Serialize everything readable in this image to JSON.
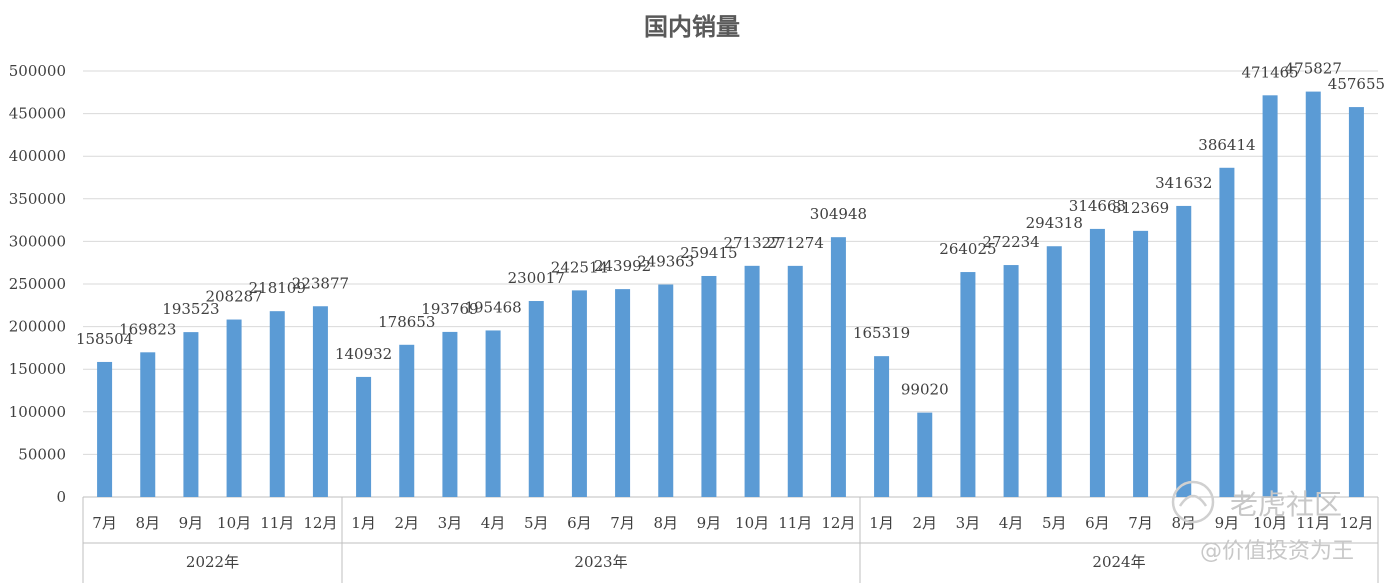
{
  "chart_data": {
    "type": "bar",
    "title": "国内销量",
    "ylim": [
      0,
      500000
    ],
    "yticks": [
      0,
      50000,
      100000,
      150000,
      200000,
      250000,
      300000,
      350000,
      400000,
      450000,
      500000
    ],
    "grid": true,
    "bar_color": "#5b9bd5",
    "categories": [
      "7月",
      "8月",
      "9月",
      "10月",
      "11月",
      "12月",
      "1月",
      "2月",
      "3月",
      "4月",
      "5月",
      "6月",
      "7月",
      "8月",
      "9月",
      "10月",
      "11月",
      "12月",
      "1月",
      "2月",
      "3月",
      "4月",
      "5月",
      "6月",
      "7月",
      "8月",
      "9月",
      "10月",
      "11月",
      "12月"
    ],
    "groups": [
      {
        "label": "2022年",
        "count": 6
      },
      {
        "label": "2023年",
        "count": 12
      },
      {
        "label": "2024年",
        "count": 12
      }
    ],
    "values": [
      158504,
      169823,
      193523,
      208287,
      218109,
      223877,
      140932,
      178653,
      193769,
      195468,
      230017,
      242514,
      243992,
      249363,
      259415,
      271327,
      271274,
      304948,
      165319,
      99020,
      264025,
      272234,
      294318,
      314663,
      312369,
      341632,
      386414,
      471465,
      475827,
      457655
    ]
  },
  "watermark": {
    "line1": "老虎社区",
    "line2": "@价值投资为王"
  }
}
